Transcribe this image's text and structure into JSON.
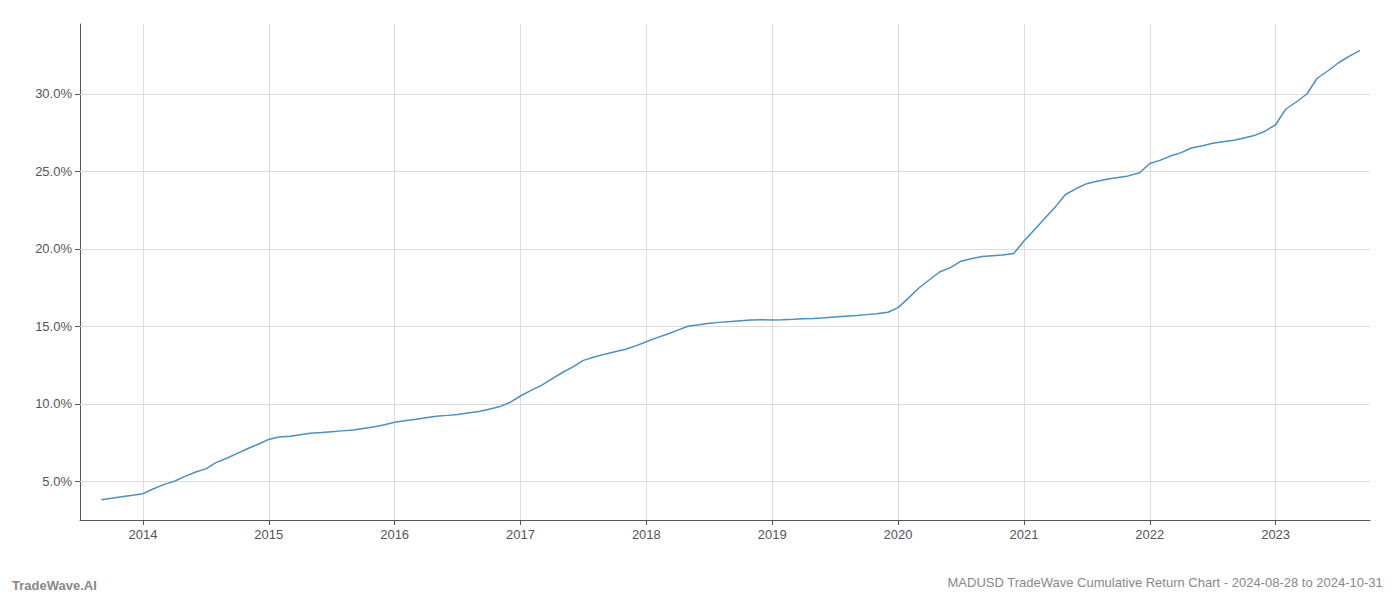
{
  "chart_data": {
    "type": "line",
    "title": "MADUSD TradeWave Cumulative Return Chart - 2024-08-28 to 2024-10-31",
    "annotations": [
      "TradeWave.AI"
    ],
    "color": "#4a90c4",
    "grid": true,
    "x": [
      2013.67,
      2013.75,
      2013.83,
      2013.92,
      2014.0,
      2014.08,
      2014.17,
      2014.25,
      2014.33,
      2014.42,
      2014.5,
      2014.58,
      2014.67,
      2014.75,
      2014.83,
      2014.92,
      2015.0,
      2015.08,
      2015.17,
      2015.25,
      2015.33,
      2015.42,
      2015.5,
      2015.58,
      2015.67,
      2015.75,
      2015.83,
      2015.92,
      2016.0,
      2016.08,
      2016.17,
      2016.25,
      2016.33,
      2016.42,
      2016.5,
      2016.58,
      2016.67,
      2016.75,
      2016.83,
      2016.92,
      2017.0,
      2017.08,
      2017.17,
      2017.25,
      2017.33,
      2017.42,
      2017.5,
      2017.58,
      2017.67,
      2017.75,
      2017.83,
      2017.92,
      2018.0,
      2018.08,
      2018.17,
      2018.25,
      2018.33,
      2018.42,
      2018.5,
      2018.58,
      2018.67,
      2018.75,
      2018.83,
      2018.92,
      2019.0,
      2019.08,
      2019.17,
      2019.25,
      2019.33,
      2019.42,
      2019.5,
      2019.58,
      2019.67,
      2019.75,
      2019.83,
      2019.92,
      2020.0,
      2020.08,
      2020.17,
      2020.25,
      2020.33,
      2020.42,
      2020.5,
      2020.58,
      2020.67,
      2020.75,
      2020.83,
      2020.92,
      2021.0,
      2021.08,
      2021.17,
      2021.25,
      2021.33,
      2021.42,
      2021.5,
      2021.58,
      2021.67,
      2021.75,
      2021.83,
      2021.92,
      2022.0,
      2022.08,
      2022.17,
      2022.25,
      2022.33,
      2022.42,
      2022.5,
      2022.58,
      2022.67,
      2022.75,
      2022.83,
      2022.92,
      2023.0,
      2023.08,
      2023.17,
      2023.25,
      2023.33,
      2023.42,
      2023.5,
      2023.58,
      2023.67
    ],
    "values": [
      3.8,
      3.9,
      4.0,
      4.1,
      4.2,
      4.5,
      4.8,
      5.0,
      5.3,
      5.6,
      5.8,
      6.2,
      6.5,
      6.8,
      7.1,
      7.4,
      7.7,
      7.85,
      7.9,
      8.0,
      8.1,
      8.15,
      8.2,
      8.25,
      8.3,
      8.4,
      8.5,
      8.65,
      8.8,
      8.9,
      9.0,
      9.1,
      9.2,
      9.25,
      9.3,
      9.4,
      9.5,
      9.65,
      9.8,
      10.1,
      10.5,
      10.85,
      11.2,
      11.6,
      12.0,
      12.4,
      12.8,
      13.0,
      13.2,
      13.35,
      13.5,
      13.75,
      14.0,
      14.25,
      14.5,
      14.75,
      15.0,
      15.1,
      15.2,
      15.25,
      15.3,
      15.35,
      15.4,
      15.42,
      15.4,
      15.42,
      15.45,
      15.48,
      15.5,
      15.55,
      15.6,
      15.65,
      15.7,
      15.75,
      15.8,
      15.9,
      16.2,
      16.8,
      17.5,
      18.0,
      18.5,
      18.8,
      19.2,
      19.35,
      19.5,
      19.55,
      19.6,
      19.7,
      20.5,
      21.2,
      22.0,
      22.7,
      23.5,
      23.9,
      24.2,
      24.35,
      24.5,
      24.6,
      24.7,
      24.9,
      25.5,
      25.7,
      26.0,
      26.2,
      26.5,
      26.65,
      26.8,
      26.9,
      27.0,
      27.15,
      27.3,
      27.6,
      28.0,
      29.0,
      29.5,
      30.0,
      31.0,
      31.5,
      32.0,
      32.4,
      32.8
    ],
    "xlim": [
      2013.5,
      2023.75
    ],
    "xticks": [
      2014,
      2015,
      2016,
      2017,
      2018,
      2019,
      2020,
      2021,
      2022,
      2023
    ],
    "ylim": [
      2.5,
      34.5
    ],
    "yticks": [
      {
        "value": 5,
        "label": "5.0%"
      },
      {
        "value": 10,
        "label": "10.0%"
      },
      {
        "value": 15,
        "label": "15.0%"
      },
      {
        "value": 20,
        "label": "20.0%"
      },
      {
        "value": 25,
        "label": "25.0%"
      },
      {
        "value": 30,
        "label": "30.0%"
      }
    ]
  }
}
